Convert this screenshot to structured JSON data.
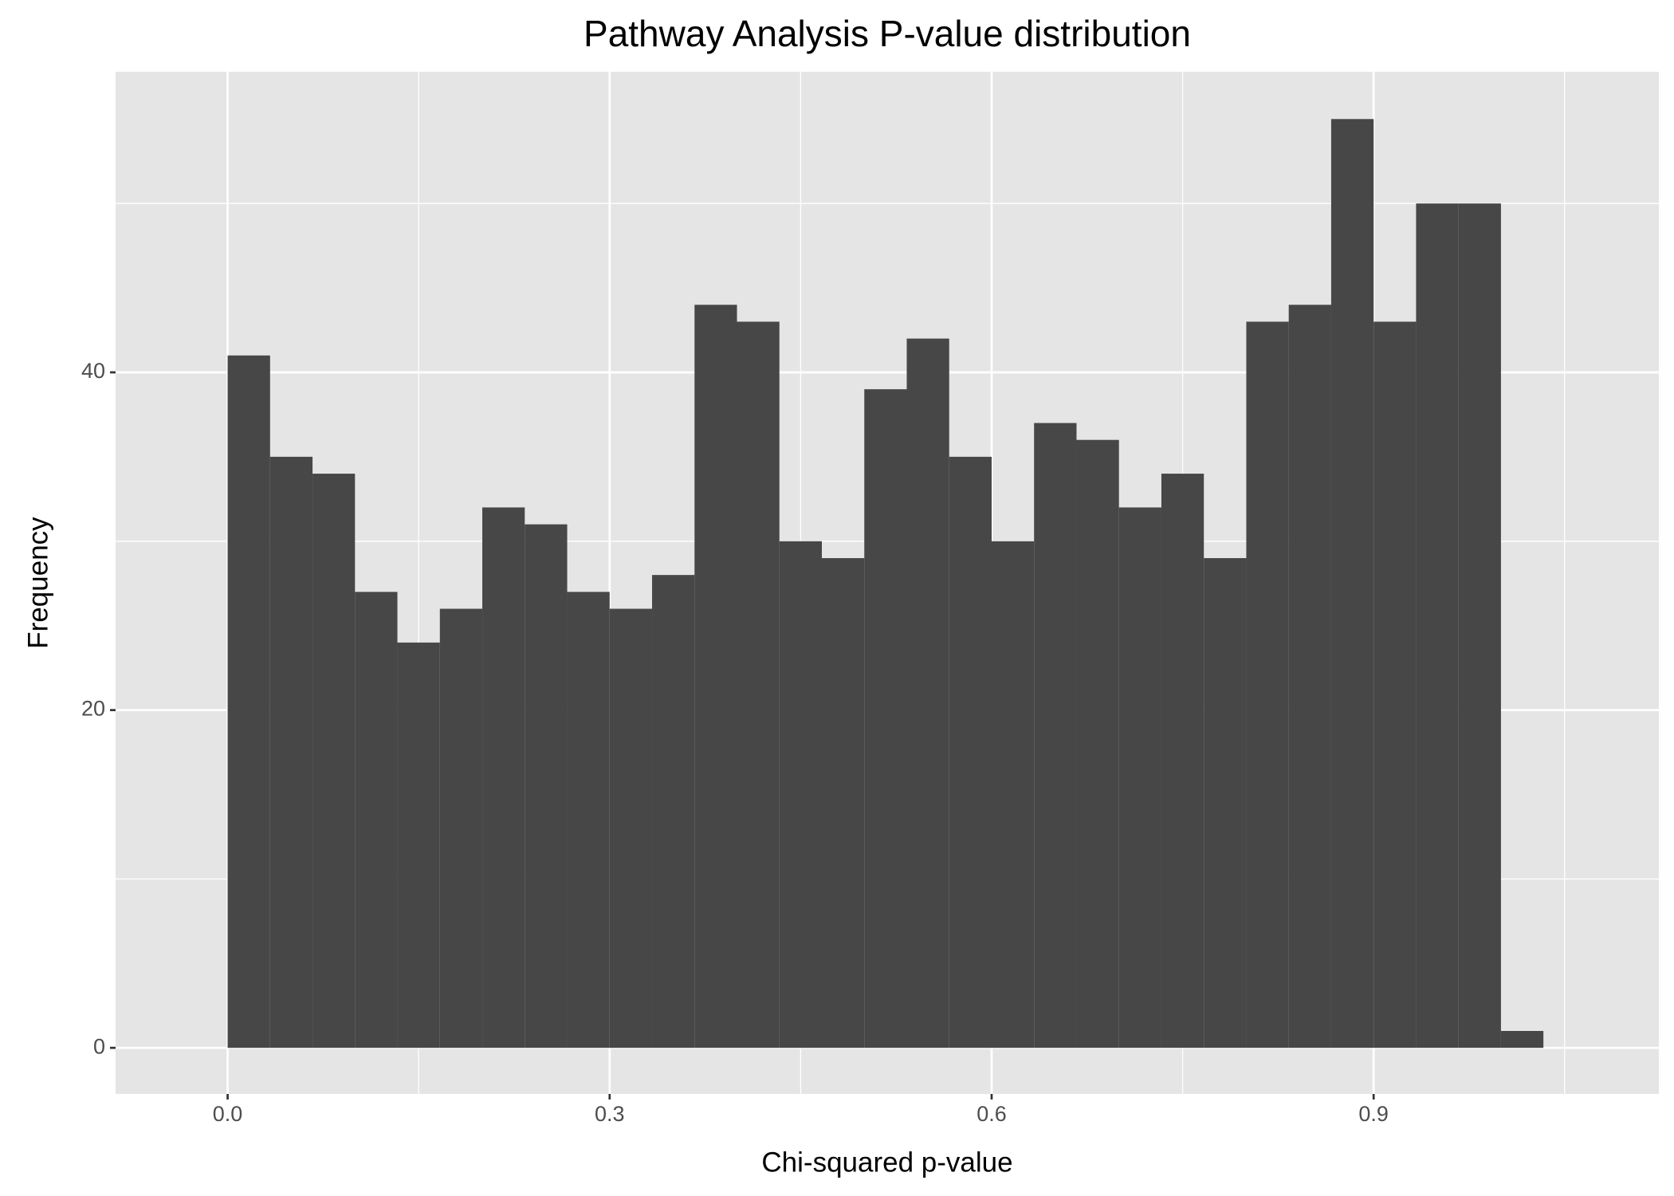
{
  "chart_data": {
    "type": "histogram",
    "title": "Pathway Analysis P-value distribution",
    "x_label": "Chi-squared p-value",
    "y_label": "Frequency",
    "bins": [
      0,
      0.03333,
      0.06667,
      0.1,
      0.13333,
      0.16667,
      0.2,
      0.23333,
      0.26667,
      0.3,
      0.33333,
      0.36667,
      0.4,
      0.43333,
      0.46667,
      0.5,
      0.53333,
      0.56667,
      0.6,
      0.63333,
      0.66667,
      0.7,
      0.73333,
      0.76667,
      0.8,
      0.83333,
      0.86667,
      0.9,
      0.93333,
      0.96667,
      1,
      1.03333
    ],
    "values": [
      41,
      35,
      34,
      27,
      24,
      26,
      32,
      31,
      27,
      26,
      28,
      44,
      43,
      30,
      29,
      39,
      42,
      35,
      30,
      37,
      36,
      32,
      34,
      29,
      43,
      44,
      55,
      43,
      50,
      50,
      1
    ],
    "color": "#474747",
    "xlim": [
      -0.088,
      1.124
    ],
    "ylim": [
      -2.73,
      57.8
    ],
    "xticks": [
      {
        "value": 0,
        "label": "0.0"
      },
      0.3,
      0.6,
      0.9
    ],
    "yticks": [
      0,
      20,
      40
    ],
    "grid": true
  }
}
